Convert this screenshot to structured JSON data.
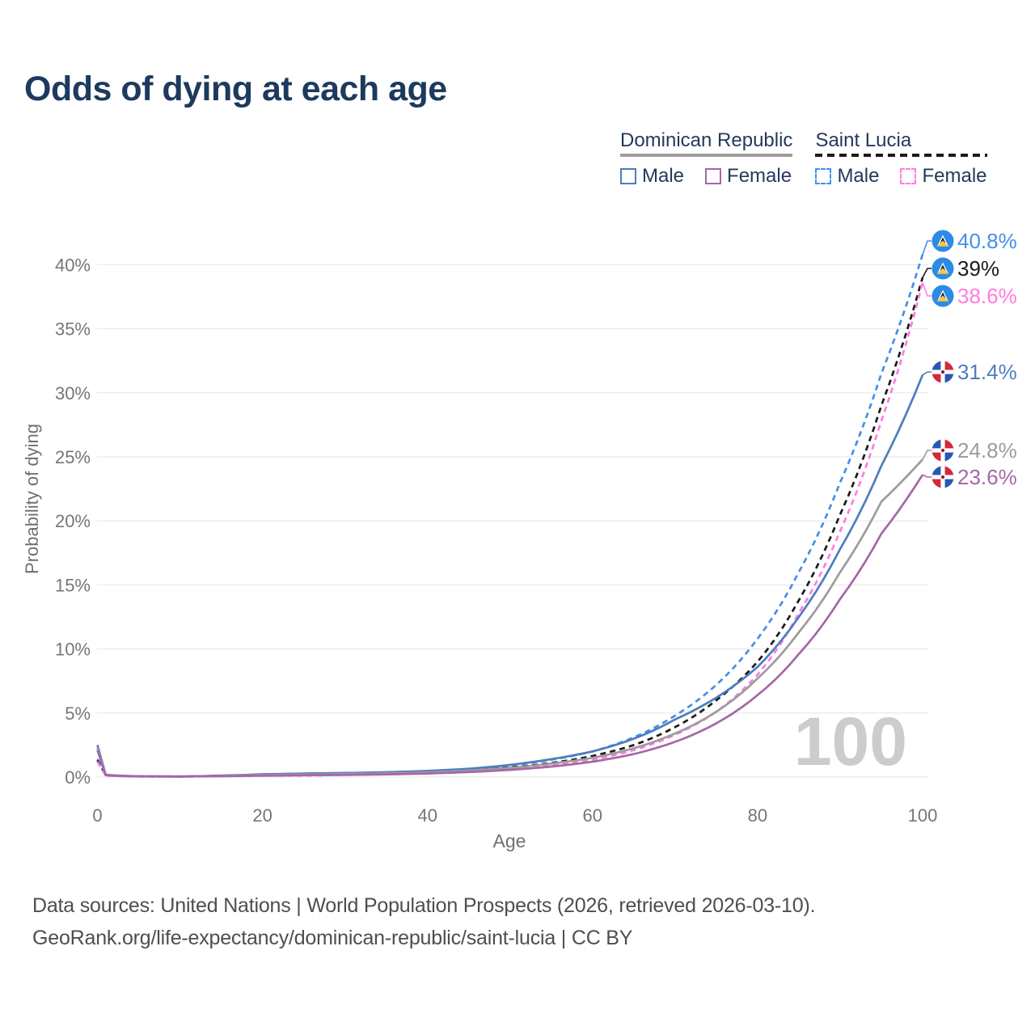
{
  "title": "Odds of dying at each age",
  "legend": {
    "groups": [
      {
        "label": "Dominican Republic",
        "line_style": "solid",
        "line_color": "#9e9e9e",
        "items": [
          {
            "label": "Male",
            "color": "#4e7dbe",
            "dashed": false
          },
          {
            "label": "Female",
            "color": "#a667a6",
            "dashed": false
          }
        ]
      },
      {
        "label": "Saint Lucia",
        "line_style": "dashed",
        "line_color": "#1b1b1b",
        "items": [
          {
            "label": "Male",
            "color": "#4490e8",
            "dashed": true
          },
          {
            "label": "Female",
            "color": "#ff7ce1",
            "dashed": true
          }
        ]
      }
    ]
  },
  "chart_data": {
    "type": "line",
    "title": "Odds of dying at each age",
    "xlabel": "Age",
    "ylabel": "Probability of dying",
    "watermark": "100",
    "xlim": [
      0,
      100
    ],
    "ylim": [
      0,
      42
    ],
    "grid": "horizontal",
    "x_ticks": [
      0,
      20,
      40,
      60,
      80,
      100
    ],
    "y_ticks": [
      "0%",
      "5%",
      "10%",
      "15%",
      "20%",
      "25%",
      "30%",
      "35%",
      "40%"
    ],
    "x": [
      0,
      1,
      5,
      10,
      15,
      20,
      25,
      30,
      35,
      40,
      45,
      50,
      55,
      60,
      65,
      70,
      75,
      80,
      85,
      90,
      95,
      100
    ],
    "series": [
      {
        "name": "Saint Lucia Male",
        "color": "#4490e8",
        "dashed": true,
        "flag": "saint-lucia",
        "end_label": "40.8%",
        "values": [
          1.4,
          0.15,
          0.05,
          0.05,
          0.1,
          0.18,
          0.22,
          0.26,
          0.32,
          0.42,
          0.6,
          0.9,
          1.35,
          2.0,
          3.1,
          4.8,
          7.2,
          10.8,
          16.0,
          23.0,
          31.5,
          40.8
        ]
      },
      {
        "name": "Saint Lucia",
        "color": "#1b1b1b",
        "dashed": true,
        "flag": "saint-lucia",
        "end_label": "39%",
        "values": [
          1.3,
          0.13,
          0.05,
          0.04,
          0.08,
          0.14,
          0.17,
          0.21,
          0.26,
          0.35,
          0.5,
          0.75,
          1.1,
          1.65,
          2.5,
          3.9,
          6.0,
          9.0,
          13.8,
          20.5,
          29.0,
          39.0
        ]
      },
      {
        "name": "Saint Lucia Female",
        "color": "#ff7ce1",
        "dashed": true,
        "flag": "saint-lucia",
        "end_label": "38.6%",
        "values": [
          1.2,
          0.12,
          0.04,
          0.04,
          0.06,
          0.1,
          0.12,
          0.16,
          0.21,
          0.28,
          0.42,
          0.62,
          0.92,
          1.35,
          2.1,
          3.3,
          5.1,
          8.0,
          12.8,
          19.2,
          27.8,
          38.6
        ]
      },
      {
        "name": "Dominican Republic Male",
        "color": "#4e7dbe",
        "dashed": false,
        "flag": "dominican-republic",
        "end_label": "31.4%",
        "values": [
          2.5,
          0.18,
          0.06,
          0.05,
          0.12,
          0.22,
          0.28,
          0.32,
          0.38,
          0.48,
          0.65,
          0.95,
          1.4,
          2.0,
          3.0,
          4.5,
          6.2,
          8.6,
          12.5,
          17.8,
          24.3,
          31.4
        ]
      },
      {
        "name": "Dominican Republic",
        "color": "#9c9c9c",
        "dashed": false,
        "flag": "dominican-republic",
        "end_label": "24.8%",
        "values": [
          2.3,
          0.16,
          0.05,
          0.045,
          0.09,
          0.16,
          0.2,
          0.24,
          0.29,
          0.37,
          0.5,
          0.72,
          1.05,
          1.5,
          2.25,
          3.4,
          5.1,
          7.7,
          11.3,
          16.0,
          21.5,
          24.8
        ]
      },
      {
        "name": "Dominican Republic Female",
        "color": "#a667a6",
        "dashed": false,
        "flag": "dominican-republic",
        "end_label": "23.6%",
        "values": [
          2.1,
          0.14,
          0.045,
          0.04,
          0.07,
          0.11,
          0.14,
          0.17,
          0.21,
          0.28,
          0.39,
          0.56,
          0.82,
          1.2,
          1.8,
          2.75,
          4.2,
          6.4,
          9.6,
          13.9,
          19.0,
          23.6
        ]
      }
    ]
  },
  "footer": {
    "line1": "Data sources: United Nations | World Population Prospects (2026, retrieved 2026-03-10).",
    "line2": "GeoRank.org/life-expectancy/dominican-republic/saint-lucia | CC BY"
  }
}
